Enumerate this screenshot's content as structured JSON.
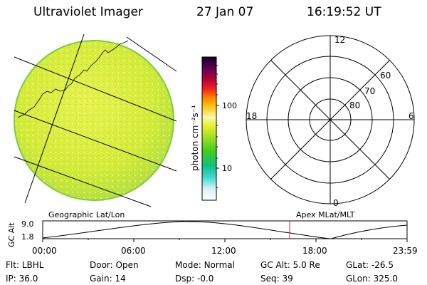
{
  "header": {
    "title": "Ultraviolet Imager",
    "date": "27 Jan 07",
    "time": "16:19:52 UT"
  },
  "colorbar": {
    "label": "photon cm⁻²s⁻¹",
    "ticks": [
      "100",
      "10"
    ]
  },
  "polar_plot": {
    "mlt_labels": {
      "top": "12",
      "left": "18",
      "right": "6",
      "bottom": "0"
    },
    "lat_labels": [
      "60",
      "70",
      "80"
    ]
  },
  "orbit_panel": {
    "left_title": "Geographic Lat/Lon",
    "right_title": "Apex MLat/MLT",
    "y_label": "GC Alt",
    "y_ticks": [
      "9.0",
      "1.8"
    ],
    "x_ticks": [
      "00:00",
      "06:00",
      "12:00",
      "18:00",
      "23:59"
    ]
  },
  "info": {
    "row1": [
      {
        "label": "Flt:",
        "value": "LBHL"
      },
      {
        "label": "Door:",
        "value": "Open"
      },
      {
        "label": "Mode:",
        "value": "Normal"
      },
      {
        "label": "GC Alt:",
        "value": "5.0 Re"
      },
      {
        "label": "GLat:",
        "value": "-26.5"
      }
    ],
    "row2": [
      {
        "label": "IP:",
        "value": "36.0"
      },
      {
        "label": "Gain:",
        "value": "14"
      },
      {
        "label": "Dsp:",
        "value": "-0.0"
      },
      {
        "label": "Seq:",
        "value": "39"
      },
      {
        "label": "GLon:",
        "value": "325.0"
      }
    ]
  },
  "colors": {
    "disk_fill": "#d7ee3a",
    "current_time_marker": "#cc2030"
  }
}
